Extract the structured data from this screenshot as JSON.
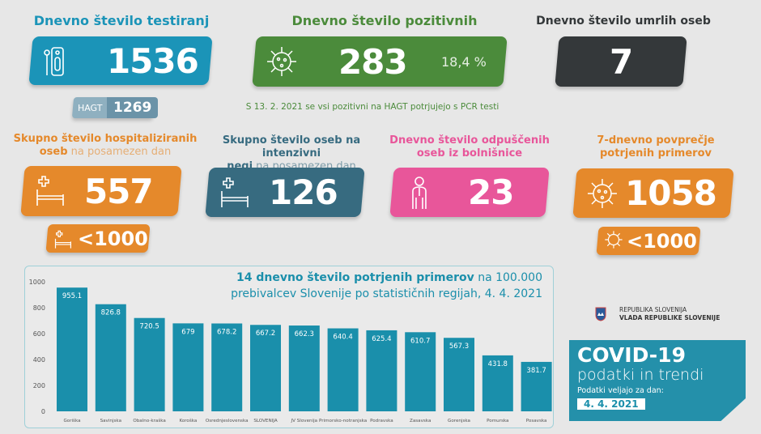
{
  "colors": {
    "blue": "#1b94b8",
    "green": "#4b8b3b",
    "dark": "#34383a",
    "orange": "#e5892b",
    "slate": "#376b80",
    "pink": "#e8569a",
    "bar": "#1a8fab"
  },
  "tests": {
    "title": "Dnevno število testiranj",
    "value": "1536",
    "hagt_label": "HAGT",
    "hagt_value": "1269",
    "icon": "test-kit-icon"
  },
  "positive": {
    "title": "Dnevno število pozitivnih",
    "value": "283",
    "percent": "18,4 %",
    "icon": "virus-icon",
    "note": "S 13. 2. 2021 se vsi pozitivni na HAGT potrjujejo s PCR testi"
  },
  "deaths": {
    "title": "Dnevno število umrlih oseb",
    "value": "7"
  },
  "hospitalized": {
    "title_bold1": "Skupno število hospitaliziranih",
    "title_bold2": "oseb",
    "title_light": " na posamezen dan",
    "value": "557",
    "threshold": "<1000",
    "icon": "hospital-bed-icon"
  },
  "icu": {
    "title_bold1": "Skupno število oseb na intenzivni",
    "title_bold2": "negi",
    "title_light": " na posamezen dan",
    "value": "126",
    "icon": "hospital-bed-icon"
  },
  "discharged": {
    "title1": "Dnevno število odpuščenih",
    "title2": "oseb iz bolnišnice",
    "value": "23",
    "icon": "person-icon"
  },
  "avg7": {
    "title1": "7-dnevno povprečje",
    "title2": "potrjenih primerov",
    "value": "1058",
    "threshold": "<1000",
    "icon": "virus-icon"
  },
  "logo": {
    "line1": "REPUBLIKA SLOVENIJA",
    "line2": "VLADA REPUBLIKE SLOVENIJE"
  },
  "covid": {
    "title": "COVID-19",
    "subtitle": "podatki in trendi",
    "valid_label": "Podatki veljajo za dan:",
    "date": "4. 4. 2021"
  },
  "chart_data": {
    "type": "bar",
    "title_bold": "14 dnevno število potrjenih primerov",
    "title_rest": " na 100.000",
    "title_line2": "prebivalcev Slovenije po statističnih regijah, 4. 4. 2021",
    "categories": [
      "Goriška",
      "Savinjska",
      "Obalno-kraška",
      "Koroška",
      "Osrednjeslovenska",
      "SLOVENIJA",
      "JV Slovenija",
      "Primorsko-notranjska",
      "Podravska",
      "Zasavska",
      "Gorenjska",
      "Pomurska",
      "Posavska"
    ],
    "values": [
      955.1,
      826.8,
      720.5,
      679,
      678.2,
      667.2,
      662.3,
      640.4,
      625.4,
      610.7,
      567.3,
      431.8,
      381.7
    ],
    "labels": [
      "955.1",
      "826.8",
      "720.5",
      "679",
      "678.2",
      "667.2",
      "662.3",
      "640.4",
      "625.4",
      "610.7",
      "567.3",
      "431.8",
      "381.7"
    ],
    "yticks": [
      0,
      200,
      400,
      600,
      800,
      1000
    ],
    "ylim": [
      0,
      1000
    ],
    "grid": false
  }
}
